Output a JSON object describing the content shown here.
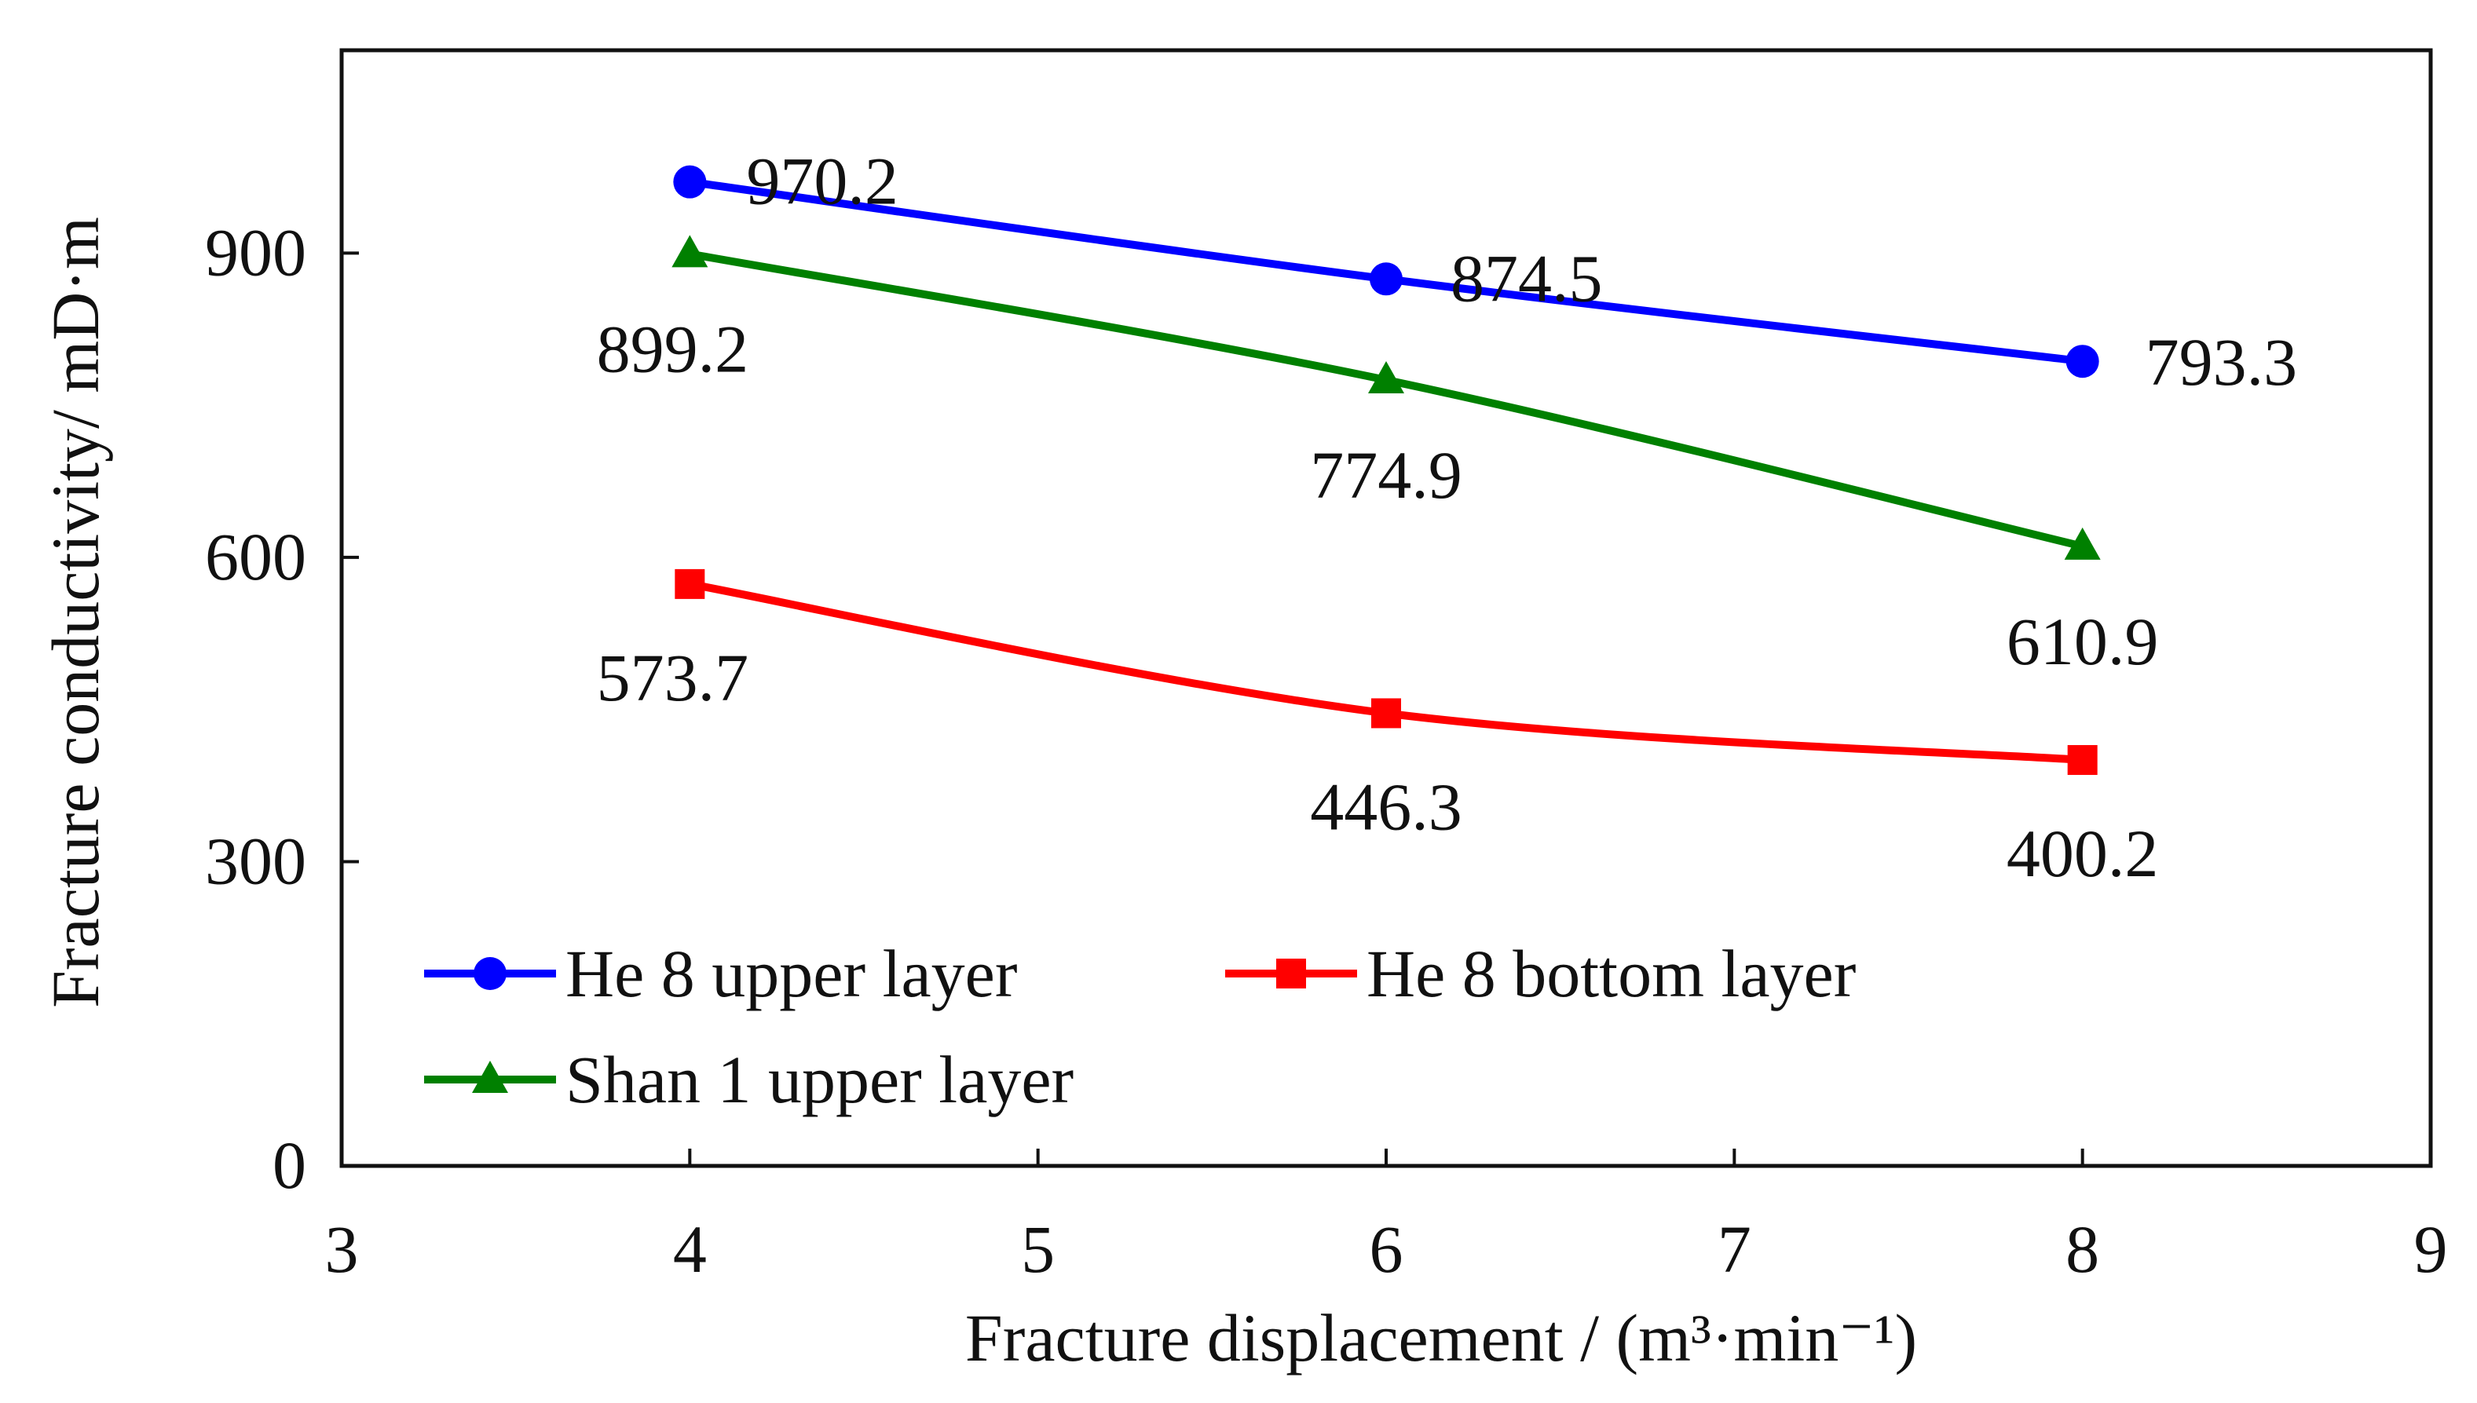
{
  "chart_data": {
    "type": "line",
    "xlabel": "Fracture displacement / (m³·min⁻¹)",
    "ylabel": "Fracture conductivity/ mD·m",
    "xlim": [
      3,
      9
    ],
    "ylim": [
      0,
      1100
    ],
    "xticks": [
      3,
      4,
      5,
      6,
      7,
      8,
      9
    ],
    "yticks": [
      0,
      300,
      600,
      900
    ],
    "grid": false,
    "legend": "bottom-left",
    "x": [
      4,
      6,
      8
    ],
    "series": [
      {
        "name": "He 8 upper layer",
        "values": [
          970.2,
          874.5,
          793.3
        ],
        "labels": [
          "970.2",
          "874.5",
          "793.3"
        ],
        "color": "#0000ff",
        "marker": "circle"
      },
      {
        "name": "He 8 bottom layer",
        "values": [
          573.7,
          446.3,
          400.2
        ],
        "labels": [
          "573.7",
          "446.3",
          "400.2"
        ],
        "color": "#ff0000",
        "marker": "square"
      },
      {
        "name": "Shan 1 upper layer",
        "values": [
          899.2,
          774.9,
          610.9
        ],
        "labels": [
          "899.2",
          "774.9",
          "610.9"
        ],
        "color": "#008000",
        "marker": "triangle"
      }
    ]
  }
}
